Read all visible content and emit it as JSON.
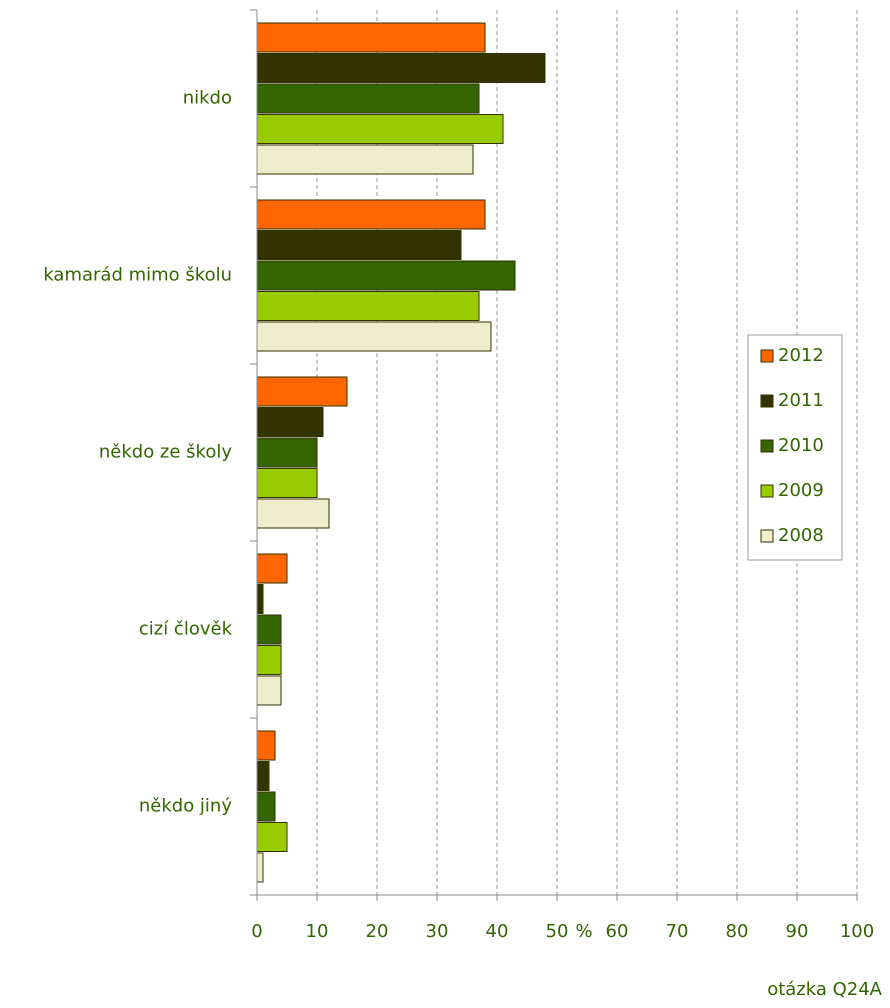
{
  "chart_data": {
    "type": "barh",
    "categories": [
      "nikdo",
      "kamarád mimo školu",
      "někdo ze školy",
      "cizí člověk",
      "někdo jiný"
    ],
    "series": [
      {
        "name": "2012",
        "color": "#ff6600",
        "values": [
          38,
          38,
          15,
          5,
          3
        ]
      },
      {
        "name": "2011",
        "color": "#333300",
        "values": [
          48,
          34,
          11,
          1,
          2
        ]
      },
      {
        "name": "2010",
        "color": "#336600",
        "values": [
          37,
          43,
          10,
          4,
          3
        ]
      },
      {
        "name": "2009",
        "color": "#99cc00",
        "values": [
          41,
          37,
          10,
          4,
          5
        ]
      },
      {
        "name": "2008",
        "color": "#eeeecc",
        "values": [
          36,
          39,
          12,
          4,
          1
        ]
      }
    ],
    "xlabel": "%",
    "xlim": [
      0,
      100
    ],
    "xticks": [
      0,
      10,
      20,
      30,
      40,
      50,
      60,
      70,
      80,
      90,
      100
    ],
    "grid": true,
    "legend": "right",
    "footnote": "otázka Q24A"
  }
}
